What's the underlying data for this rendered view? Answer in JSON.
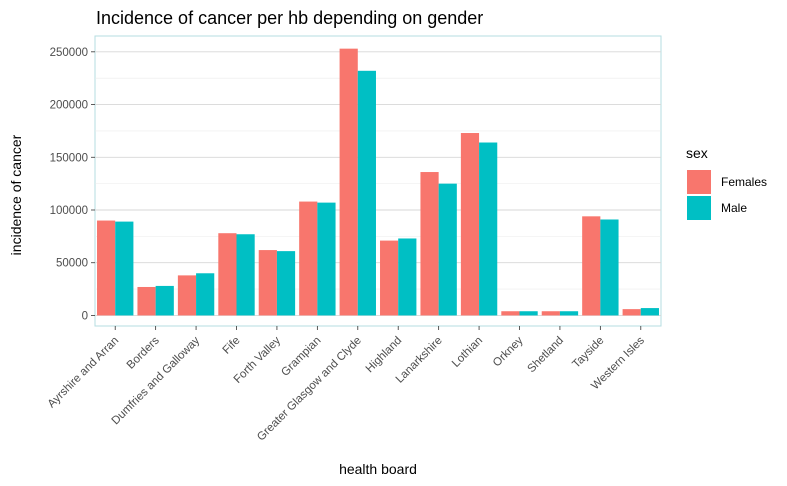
{
  "chart_data": {
    "type": "bar",
    "title": "Incidence of cancer per hb depending on gender",
    "xlabel": "health board",
    "ylabel": "incidence of cancer",
    "ylim": [
      -10000,
      265000
    ],
    "yticks": [
      0,
      50000,
      100000,
      150000,
      200000,
      250000
    ],
    "ytick_labels": [
      "0",
      "50000",
      "100000",
      "150000",
      "200000",
      "250000"
    ],
    "grid": true,
    "legend": {
      "title": "sex",
      "position": "right"
    },
    "categories": [
      "Ayrshire and Arran",
      "Borders",
      "Dumfries and Galloway",
      "Fife",
      "Forth Valley",
      "Grampian",
      "Greater Glasgow and Clyde",
      "Highland",
      "Lanarkshire",
      "Lothian",
      "Orkney",
      "Shetland",
      "Tayside",
      "Western Isles"
    ],
    "series": [
      {
        "name": "Females",
        "color": "#F8766D",
        "values": [
          90000,
          27000,
          38000,
          78000,
          62000,
          108000,
          253000,
          71000,
          136000,
          173000,
          4000,
          4000,
          94000,
          6000
        ]
      },
      {
        "name": "Male",
        "color": "#00BFC4",
        "values": [
          89000,
          28000,
          40000,
          77000,
          61000,
          107000,
          232000,
          73000,
          125000,
          164000,
          4000,
          4000,
          91000,
          7000
        ]
      }
    ]
  }
}
